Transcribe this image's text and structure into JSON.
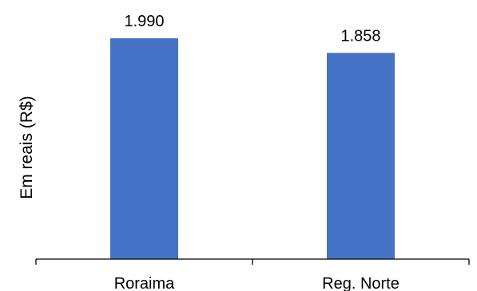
{
  "chart_data": {
    "type": "bar",
    "title": "",
    "xlabel": "",
    "ylabel": "Em reais (R$)",
    "categories": [
      "Roraima",
      "Reg. Norte"
    ],
    "values": [
      1990,
      1858
    ],
    "data_labels": [
      "1.990",
      "1.858"
    ],
    "ylim": [
      0,
      1990
    ],
    "grid": false,
    "bar_color": "#4472C4",
    "axis_color": "#000000"
  }
}
